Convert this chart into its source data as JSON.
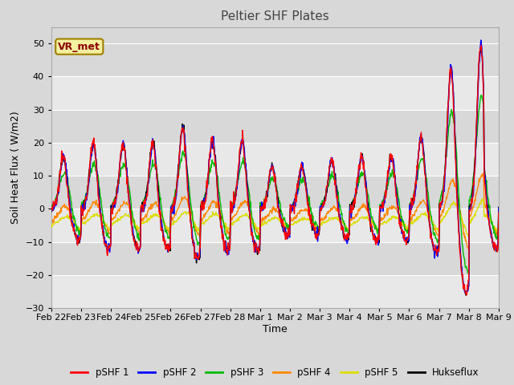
{
  "title": "Peltier SHF Plates",
  "xlabel": "Time",
  "ylabel": "Soil Heat Flux ( W/m2)",
  "ylim": [
    -30,
    55
  ],
  "yticks": [
    -30,
    -20,
    -10,
    0,
    10,
    20,
    30,
    40,
    50
  ],
  "background_color": "#d8d8d8",
  "plot_bg_color": "#d8d8d8",
  "annotation_text": "VR_met",
  "annotation_box_facecolor": "#f5f0a0",
  "annotation_box_edgecolor": "#a08000",
  "annotation_text_color": "#8b0000",
  "colors": {
    "pSHF 1": "#ff0000",
    "pSHF 2": "#0000ff",
    "pSHF 3": "#00bb00",
    "pSHF 4": "#ff8800",
    "pSHF 5": "#dddd00",
    "Hukseflux": "#000000"
  },
  "x_tick_labels": [
    "Feb 22",
    "Feb 23",
    "Feb 24",
    "Feb 25",
    "Feb 26",
    "Feb 27",
    "Feb 28",
    "Mar 1",
    "Mar 2",
    "Mar 3",
    "Mar 4",
    "Mar 5",
    "Mar 6",
    "Mar 7",
    "Mar 8",
    "Mar 9"
  ],
  "n_points": 960,
  "stripe_colors": [
    "#e8e8e8",
    "#d8d8d8"
  ]
}
